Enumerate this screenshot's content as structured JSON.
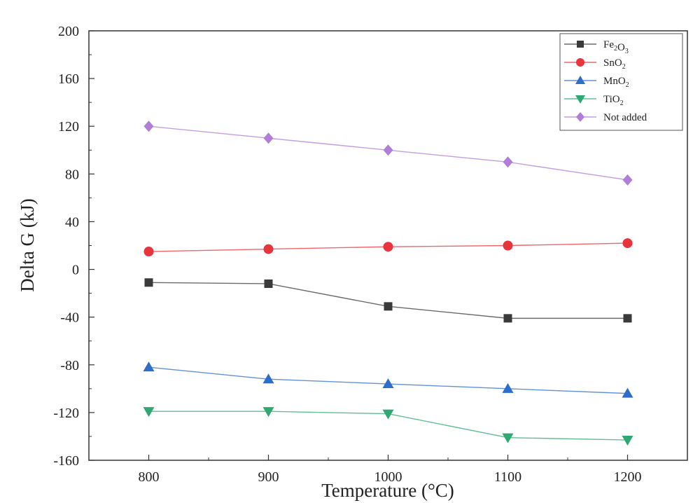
{
  "chart_data": {
    "type": "line",
    "title": "",
    "xlabel": "Temperature (°C)",
    "ylabel": "Delta G (kJ)",
    "x": [
      800,
      900,
      1000,
      1100,
      1200
    ],
    "xlim": [
      750,
      1250
    ],
    "ylim": [
      -160,
      200
    ],
    "xticks": [
      800,
      900,
      1000,
      1100,
      1200
    ],
    "yticks": [
      -160,
      -120,
      -80,
      -40,
      0,
      40,
      80,
      120,
      160,
      200
    ],
    "grid": false,
    "legend_position": "top-right",
    "series": [
      {
        "name": "Fe2O3",
        "legend_main": [
          "Fe",
          "O"
        ],
        "legend_sub": [
          "2",
          "3"
        ],
        "color": "#3a3a3a",
        "marker": "square",
        "values": [
          -11,
          -12,
          -31,
          -41,
          -41
        ]
      },
      {
        "name": "SnO2",
        "legend_main": [
          "SnO"
        ],
        "legend_sub": [
          "2"
        ],
        "color": "#e8343c",
        "marker": "circle",
        "values": [
          15,
          17,
          19,
          20,
          22
        ]
      },
      {
        "name": "MnO2",
        "legend_main": [
          "MnO"
        ],
        "legend_sub": [
          "2"
        ],
        "color": "#2f6dcc",
        "marker": "triangle-up",
        "values": [
          -82,
          -92,
          -96,
          -100,
          -104
        ]
      },
      {
        "name": "TiO2",
        "legend_main": [
          "TiO"
        ],
        "legend_sub": [
          "2"
        ],
        "color": "#2fa872",
        "marker": "triangle-down",
        "values": [
          -119,
          -119,
          -121,
          -141,
          -143
        ]
      },
      {
        "name": "Not added",
        "legend_main": [
          "Not added"
        ],
        "legend_sub": [],
        "color": "#b07ed9",
        "marker": "diamond",
        "values": [
          120,
          110,
          100,
          90,
          75
        ]
      }
    ]
  }
}
